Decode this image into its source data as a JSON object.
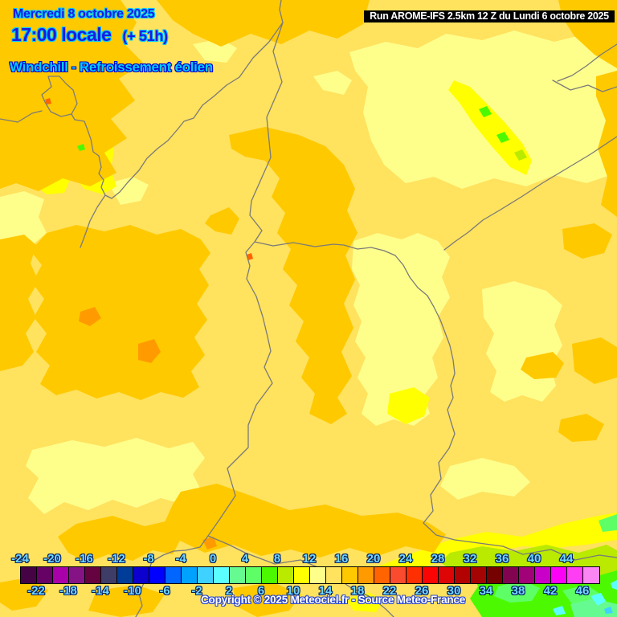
{
  "header": {
    "date_line": "Mercredi 8 octobre 2025",
    "time_line": "17:00 locale",
    "offset": "(+ 51h)",
    "param_line": "Windchill - Refroissement éolien",
    "run_line": "Run AROME-IFS 2.5km 12 Z du Lundi 6 octobre 2025",
    "date_color": "#1a1ae0",
    "date_glow": "#00ccff",
    "param_color": "#00ccff",
    "param_glow": "#0000cc",
    "run_bg": "#000000",
    "run_text_color": "#ffffff"
  },
  "palette": {
    "base": "#ffe25e",
    "pale": "#feff8b",
    "bright_yellow": "#ffff00",
    "orange": "#ffc900",
    "deep_orange": "#ff9b00",
    "red_orange": "#ff6400",
    "yellow_green": "#b9ea00",
    "green": "#4cf900",
    "light_green": "#5eff66",
    "mint": "#66fb90",
    "cyan": "#5cffff",
    "light_blue": "#3fd1ff",
    "border": "#7a7a7a"
  },
  "scale": {
    "top_labels": [
      "-24",
      "-20",
      "-16",
      "-12",
      "-8",
      "-4",
      "0",
      "4",
      "8",
      "12",
      "16",
      "20",
      "24",
      "28",
      "32",
      "36",
      "40",
      "44"
    ],
    "bottom_labels": [
      "-22",
      "-18",
      "-14",
      "-10",
      "-6",
      "-2",
      "2",
      "6",
      "10",
      "14",
      "18",
      "22",
      "26",
      "30",
      "34",
      "38",
      "42",
      "46"
    ],
    "label_color": "#70d8ff",
    "cell_colors": [
      "#450345",
      "#660266",
      "#aa00aa",
      "#851385",
      "#650240",
      "#3d3d68",
      "#003d99",
      "#0b00cd",
      "#0000ff",
      "#0066ff",
      "#00a2ff",
      "#3fd1ff",
      "#5cffff",
      "#66fb90",
      "#5eff66",
      "#4cf900",
      "#b9ea00",
      "#ffff00",
      "#feff8b",
      "#ffe25e",
      "#ffc900",
      "#ff9b00",
      "#ff6400",
      "#fb4b2e",
      "#fe2f00",
      "#fb0404",
      "#dd0506",
      "#b20302",
      "#a40404",
      "#750101",
      "#820450",
      "#a10277",
      "#c800c8",
      "#fb02f6",
      "#fd3ef3",
      "#fb85f3"
    ]
  },
  "footer": {
    "copyright": "Copyright © 2025 Meteociel.fr - Source Meteo-France"
  }
}
